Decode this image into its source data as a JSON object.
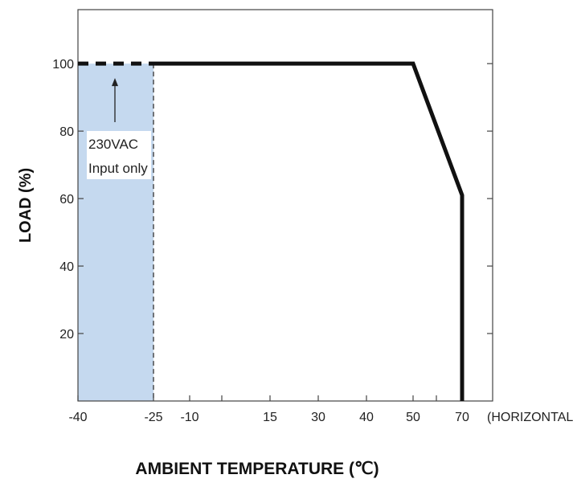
{
  "chart_data": {
    "type": "line",
    "title": "",
    "xlabel": "AMBIENT TEMPERATURE (℃)",
    "ylabel": "LOAD (%)",
    "x_suffix": "(HORIZONTAL)",
    "x_ticks": [
      -40,
      -25,
      -10,
      15,
      30,
      40,
      50,
      70
    ],
    "y_ticks": [
      20,
      40,
      60,
      80,
      100
    ],
    "xlim": [
      -40,
      73
    ],
    "ylim": [
      0,
      116
    ],
    "series": [
      {
        "name": "",
        "style": "solid",
        "color": "#111111",
        "points": [
          [
            -25,
            100
          ],
          [
            50,
            100
          ],
          [
            60,
            61
          ],
          [
            60,
            0
          ]
        ]
      },
      {
        "name": "",
        "style": "dashed",
        "color": "#111111",
        "points": [
          [
            -40,
            100
          ],
          [
            -25,
            100
          ]
        ]
      }
    ],
    "shaded_region": {
      "x_range": [
        -40,
        -25
      ],
      "color": "#c5d9ef"
    },
    "annotation": {
      "line1": "230VAC",
      "line2": "Input only",
      "arrow_to": [
        -30,
        100
      ]
    },
    "grid": false,
    "legend": "none"
  }
}
